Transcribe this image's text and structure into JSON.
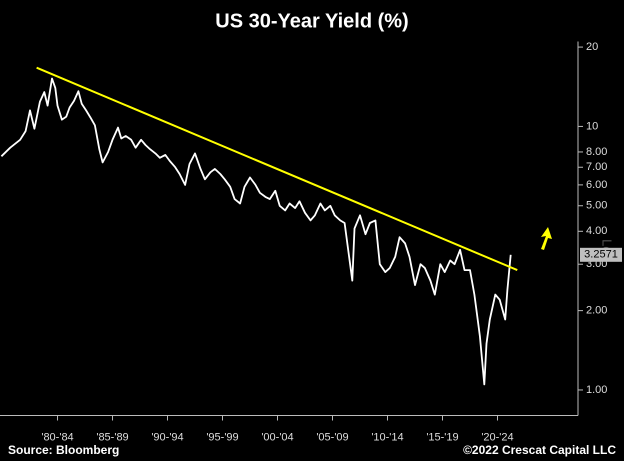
{
  "chart_data": {
    "type": "line",
    "title": "US 30-Year Yield (%)",
    "x": [
      1977.4,
      1978.2,
      1979.1,
      1979.6,
      1980.0,
      1980.4,
      1980.9,
      1981.3,
      1981.6,
      1982.0,
      1982.3,
      1982.5,
      1982.9,
      1983.3,
      1983.6,
      1984.0,
      1984.4,
      1984.7,
      1985.1,
      1985.5,
      1985.9,
      1986.3,
      1986.6,
      1987.1,
      1987.5,
      1988.0,
      1988.3,
      1988.7,
      1989.2,
      1989.6,
      1990.1,
      1990.5,
      1990.9,
      1991.4,
      1991.8,
      1992.3,
      1992.7,
      1993.2,
      1993.6,
      1994.1,
      1994.5,
      1995.0,
      1995.5,
      1995.9,
      1996.4,
      1996.8,
      1997.3,
      1997.7,
      1998.2,
      1998.6,
      1999.1,
      1999.5,
      2000.0,
      2000.5,
      2000.9,
      2001.4,
      2001.8,
      2002.3,
      2002.7,
      2003.2,
      2003.6,
      2004.1,
      2004.5,
      2005.0,
      2005.5,
      2005.9,
      2006.4,
      2006.8,
      2007.3,
      2007.7,
      2008.2,
      2008.6,
      2009.3,
      2009.5,
      2010.0,
      2010.5,
      2010.9,
      2011.4,
      2011.8,
      2012.3,
      2012.7,
      2013.2,
      2013.6,
      2014.1,
      2014.5,
      2015.0,
      2015.5,
      2015.9,
      2016.4,
      2016.8,
      2017.3,
      2017.7,
      2018.2,
      2018.6,
      2019.1,
      2019.5,
      2020.0,
      2020.4,
      2020.9,
      2021.3,
      2021.5,
      2021.8,
      2022.3,
      2022.7,
      2023.2,
      2023.4,
      2023.7
    ],
    "values": [
      7.7,
      8.3,
      8.9,
      9.6,
      11.5,
      9.8,
      12.4,
      13.5,
      12.0,
      15.2,
      14.0,
      12.0,
      10.6,
      10.9,
      11.8,
      12.5,
      13.6,
      12.2,
      11.5,
      10.8,
      10.1,
      8.2,
      7.3,
      8.0,
      8.9,
      9.9,
      9.0,
      9.2,
      8.9,
      8.3,
      8.9,
      8.5,
      8.2,
      7.9,
      7.6,
      7.8,
      7.4,
      7.0,
      6.6,
      6.0,
      7.2,
      7.9,
      6.9,
      6.3,
      6.7,
      6.9,
      6.6,
      6.3,
      5.9,
      5.3,
      5.1,
      5.9,
      6.4,
      6.0,
      5.6,
      5.4,
      5.3,
      5.7,
      5.0,
      4.8,
      5.1,
      4.9,
      5.2,
      4.7,
      4.4,
      4.6,
      5.1,
      4.8,
      5.0,
      4.6,
      4.4,
      4.3,
      2.6,
      4.1,
      4.6,
      3.9,
      4.3,
      4.4,
      3.0,
      2.8,
      2.9,
      3.2,
      3.8,
      3.6,
      3.2,
      2.5,
      3.0,
      2.9,
      2.6,
      2.3,
      3.0,
      2.8,
      3.1,
      3.0,
      3.4,
      2.85,
      2.85,
      2.3,
      1.6,
      1.05,
      1.5,
      1.85,
      2.3,
      2.2,
      1.85,
      2.4,
      3.2571
    ],
    "color": "#ffffff",
    "log_scale": true,
    "scale_label": "Log",
    "xlim": [
      1977.27,
      2029.82
    ],
    "xticks": [
      {
        "value": 1982.5,
        "label": "'80-'84"
      },
      {
        "value": 1987.5,
        "label": "'85-'89"
      },
      {
        "value": 1992.5,
        "label": "'90-'94"
      },
      {
        "value": 1997.5,
        "label": "'95-'99"
      },
      {
        "value": 2002.5,
        "label": "'00-'04"
      },
      {
        "value": 2007.5,
        "label": "'05-'09"
      },
      {
        "value": 2012.5,
        "label": "'10-'14"
      },
      {
        "value": 2017.5,
        "label": "'15-'19"
      },
      {
        "value": 2022.5,
        "label": "'20-'24"
      }
    ],
    "ylim": [
      0.8,
      21
    ],
    "yticks": [
      20,
      10,
      {
        "value": 8,
        "label": "8.00"
      },
      {
        "value": 7,
        "label": "7.00"
      },
      {
        "value": 6,
        "label": "6.00"
      },
      {
        "value": 5,
        "label": "5.00"
      },
      {
        "value": 4,
        "label": "4.00"
      },
      {
        "value": 3,
        "label": "3.00"
      },
      {
        "value": 2,
        "label": "2.00"
      },
      {
        "value": 1,
        "label": "1.00"
      }
    ],
    "trendline": {
      "x": [
        1980.6,
        2024.3
      ],
      "values": [
        16.7,
        2.85
      ],
      "color": "#ffff00"
    },
    "source": "Source: Bloomberg",
    "copyright": "©2022 Crescat Capital LLC"
  }
}
